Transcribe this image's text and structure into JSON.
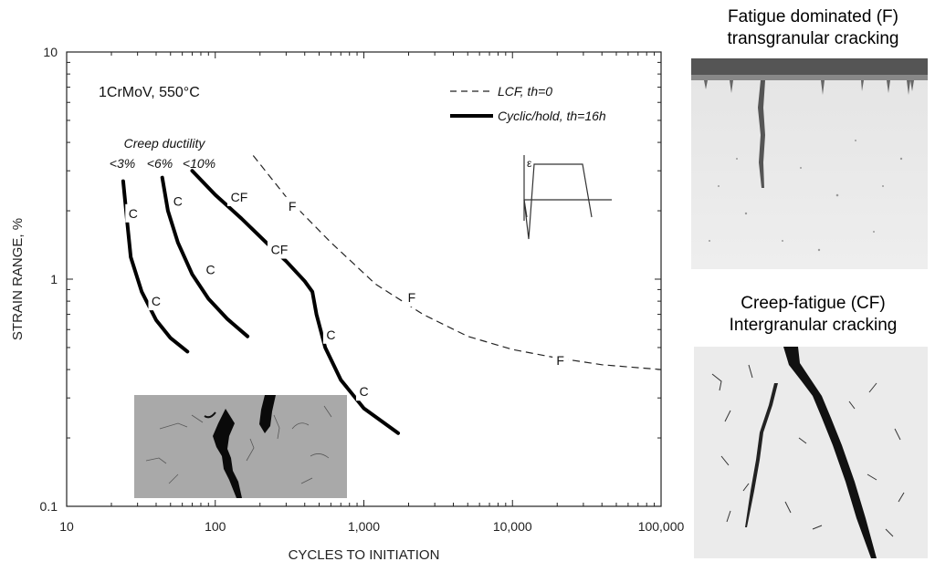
{
  "chart_data": {
    "type": "line",
    "title": "",
    "xlabel": "CYCLES TO INITIATION",
    "ylabel": "STRAIN RANGE, %",
    "xscale": "log",
    "yscale": "log",
    "xlim": [
      10,
      100000
    ],
    "ylim": [
      0.1,
      10
    ],
    "x_tick_labels": [
      "10",
      "100",
      "1,000",
      "10,000",
      "100,000"
    ],
    "y_tick_labels": [
      "0.1",
      "1",
      "10"
    ],
    "material_label": "1CrMoV, 550°C",
    "legend_position": "top-right",
    "legend": [
      {
        "label": "LCF, th=0",
        "style": "dashed"
      },
      {
        "label": "Cyclic/hold, th=16h",
        "style": "solid-thick"
      }
    ],
    "creep_ductility_title": "Creep ductility",
    "ductility_labels": [
      "<3%",
      "<6%",
      "<10%"
    ],
    "series": [
      {
        "name": "LCF, th=0",
        "style": "dashed",
        "x": [
          180,
          300,
          600,
          1200,
          2500,
          5000,
          10000,
          20000,
          40000,
          100000
        ],
        "y": [
          3.5,
          2.3,
          1.45,
          0.95,
          0.7,
          0.56,
          0.49,
          0.45,
          0.42,
          0.4
        ],
        "labels": [
          {
            "text": "F",
            "x": 330,
            "y": 2.1
          },
          {
            "text": "F",
            "x": 2100,
            "y": 0.83
          },
          {
            "text": "F",
            "x": 21000,
            "y": 0.44
          }
        ]
      },
      {
        "name": "<3%",
        "style": "solid-thick",
        "x": [
          24,
          25.5,
          27,
          32,
          40,
          50,
          65
        ],
        "y": [
          2.7,
          1.8,
          1.25,
          0.88,
          0.66,
          0.55,
          0.48
        ],
        "labels": [
          {
            "text": "C",
            "x": 28,
            "y": 1.95
          },
          {
            "text": "C",
            "x": 40,
            "y": 0.8
          }
        ]
      },
      {
        "name": "<6%",
        "style": "solid-thick",
        "x": [
          44,
          48,
          56,
          70,
          90,
          120,
          165
        ],
        "y": [
          2.8,
          2.0,
          1.45,
          1.05,
          0.82,
          0.67,
          0.56
        ],
        "labels": [
          {
            "text": "C",
            "x": 56,
            "y": 2.2
          },
          {
            "text": "C",
            "x": 93,
            "y": 1.1
          }
        ]
      },
      {
        "name": "<10%",
        "style": "solid-thick",
        "x": [
          70,
          100,
          150,
          220,
          300,
          400,
          450,
          480,
          550,
          700,
          1000,
          1700
        ],
        "y": [
          3.0,
          2.35,
          1.85,
          1.45,
          1.2,
          0.98,
          0.88,
          0.7,
          0.5,
          0.36,
          0.27,
          0.21
        ],
        "labels": [
          {
            "text": "CF",
            "x": 145,
            "y": 2.3
          },
          {
            "text": "CF",
            "x": 270,
            "y": 1.35
          },
          {
            "text": "C",
            "x": 600,
            "y": 0.57
          },
          {
            "text": "C",
            "x": 1000,
            "y": 0.32
          }
        ]
      }
    ]
  },
  "panels": {
    "top_caption_line1": "Fatigue dominated (F)",
    "top_caption_line2": "transgranular cracking",
    "bottom_caption_line1": "Creep-fatigue (CF)",
    "bottom_caption_line2": "Intergranular cracking"
  },
  "waveform_symbol": "ε"
}
